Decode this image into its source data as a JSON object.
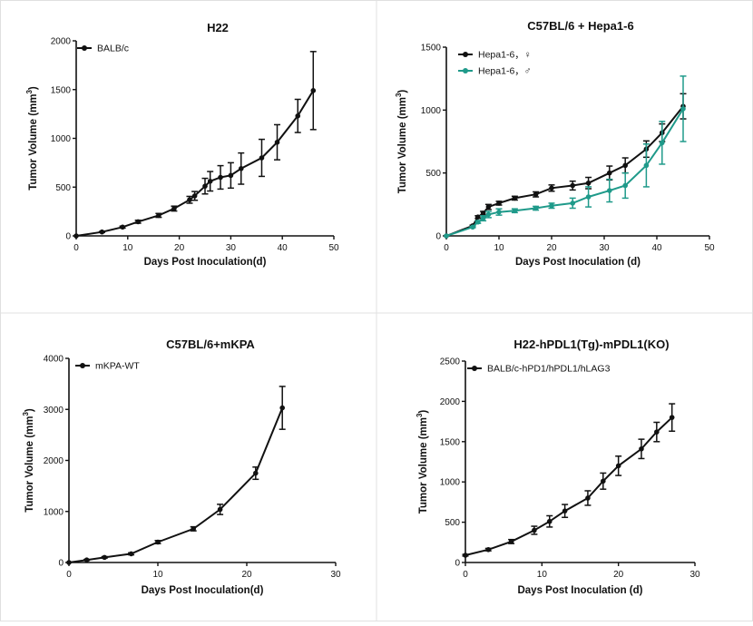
{
  "chart_data": [
    {
      "type": "line",
      "title": "H22",
      "xlabel": "Days Post Inoculation(d)",
      "ylabel": "Tumor Volume (mm³)",
      "xlim": [
        0,
        50
      ],
      "ylim": [
        0,
        2000
      ],
      "xticks": [
        "0",
        "10",
        "20",
        "30",
        "40",
        "50"
      ],
      "yticks": [
        "0",
        "500",
        "1000",
        "1500",
        "2000"
      ],
      "legend_position": "top-left",
      "series": [
        {
          "name": "BALB/c",
          "color": "#111111",
          "x": [
            0,
            5,
            9,
            12,
            16,
            19,
            22,
            23,
            25,
            26,
            28,
            30,
            32,
            36,
            39,
            43,
            46
          ],
          "y": [
            0,
            40,
            90,
            145,
            210,
            280,
            370,
            410,
            510,
            560,
            600,
            620,
            690,
            800,
            960,
            1230,
            1490
          ],
          "err": [
            0,
            5,
            10,
            15,
            20,
            25,
            35,
            45,
            80,
            100,
            120,
            130,
            160,
            190,
            180,
            170,
            400
          ]
        }
      ]
    },
    {
      "type": "line",
      "title": "C57BL/6 + Hepa1-6",
      "xlabel": "Days Post Inoculation (d)",
      "ylabel": "Tumor Volume (mm³)",
      "xlim": [
        0,
        50
      ],
      "ylim": [
        0,
        1500
      ],
      "xticks": [
        "0",
        "10",
        "20",
        "30",
        "40",
        "50"
      ],
      "yticks": [
        "0",
        "500",
        "1000",
        "1500"
      ],
      "legend_position": "top-left",
      "series": [
        {
          "name": "Hepa1-6，♀",
          "color": "#111111",
          "x": [
            0,
            5,
            6,
            7,
            8,
            10,
            13,
            17,
            20,
            24,
            27,
            31,
            34,
            38,
            41,
            45
          ],
          "y": [
            0,
            80,
            150,
            180,
            230,
            260,
            300,
            330,
            380,
            400,
            420,
            500,
            560,
            690,
            820,
            1030
          ],
          "err": [
            0,
            5,
            10,
            15,
            20,
            15,
            15,
            20,
            25,
            35,
            45,
            55,
            60,
            65,
            70,
            100
          ]
        },
        {
          "name": "Hepa1-6，♂",
          "color": "#1f9a8a",
          "x": [
            0,
            5,
            6,
            7,
            8,
            10,
            13,
            17,
            20,
            24,
            27,
            31,
            34,
            38,
            41,
            45
          ],
          "y": [
            0,
            70,
            110,
            140,
            170,
            190,
            200,
            220,
            240,
            260,
            310,
            360,
            400,
            560,
            740,
            1010
          ],
          "err": [
            0,
            5,
            10,
            20,
            25,
            25,
            15,
            15,
            20,
            40,
            80,
            90,
            100,
            170,
            170,
            260
          ]
        }
      ]
    },
    {
      "type": "line",
      "title": "C57BL/6+mKPA",
      "xlabel": "Days Post Inoculation(d)",
      "ylabel": "Tumor Volume (mm³)",
      "xlim": [
        0,
        30
      ],
      "ylim": [
        0,
        4000
      ],
      "xticks": [
        "0",
        "10",
        "20",
        "30"
      ],
      "yticks": [
        "0",
        "1000",
        "2000",
        "3000",
        "4000"
      ],
      "legend_position": "top-left",
      "series": [
        {
          "name": "mKPA-WT",
          "color": "#111111",
          "x": [
            0,
            2,
            4,
            7,
            10,
            14,
            17,
            21,
            24
          ],
          "y": [
            0,
            50,
            100,
            170,
            400,
            660,
            1040,
            1750,
            3030
          ],
          "err": [
            0,
            10,
            15,
            20,
            30,
            40,
            100,
            120,
            420
          ]
        }
      ]
    },
    {
      "type": "line",
      "title": "H22-hPDL1(Tg)-mPDL1(KO)",
      "xlabel": "Days Post Inoculation (d)",
      "ylabel": "Tumor Volume (mm³)",
      "xlim": [
        0,
        30
      ],
      "ylim": [
        0,
        2500
      ],
      "xticks": [
        "0",
        "10",
        "20",
        "30"
      ],
      "yticks": [
        "0",
        "500",
        "1000",
        "1500",
        "2000",
        "2500"
      ],
      "legend_position": "top-left",
      "series": [
        {
          "name": "BALB/c-hPD1/hPDL1/hLAG3",
          "color": "#111111",
          "x": [
            0,
            3,
            6,
            9,
            11,
            13,
            16,
            18,
            20,
            23,
            25,
            27
          ],
          "y": [
            90,
            160,
            260,
            400,
            510,
            640,
            800,
            1010,
            1200,
            1410,
            1620,
            1800
          ],
          "err": [
            10,
            15,
            25,
            50,
            70,
            80,
            90,
            100,
            120,
            120,
            120,
            170
          ]
        }
      ]
    }
  ]
}
